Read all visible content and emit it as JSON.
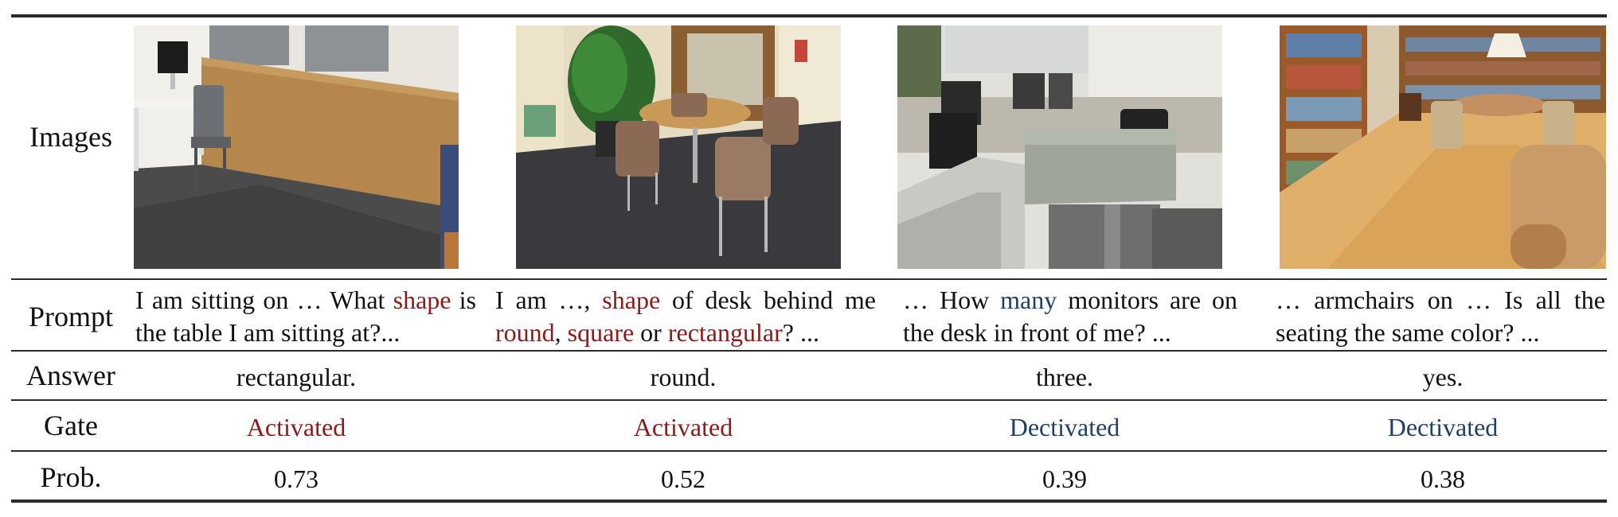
{
  "row_labels": {
    "images": "Images",
    "prompt": "Prompt",
    "answer": "Answer",
    "gate": "Gate",
    "prob": "Prob."
  },
  "examples": [
    {
      "image_name": "office-room-photo",
      "prompt_parts": [
        {
          "text": "I am sitting on … What ",
          "highlight": false
        },
        {
          "text": "shape",
          "highlight": true
        },
        {
          "text": " is the table I am sitting at?...",
          "highlight": false
        }
      ],
      "answer": "rectangular.",
      "gate": "Activated",
      "gate_state": "activated",
      "prob": "0.73"
    },
    {
      "image_name": "lounge-table-photo",
      "prompt_parts": [
        {
          "text": "I am …, ",
          "highlight": false
        },
        {
          "text": "shape",
          "highlight": true
        },
        {
          "text": " of desk behind me ",
          "highlight": false
        },
        {
          "text": "round",
          "highlight": true
        },
        {
          "text": ", ",
          "highlight": false
        },
        {
          "text": "square",
          "highlight": true
        },
        {
          "text": " or ",
          "highlight": false
        },
        {
          "text": "rectangular",
          "highlight": true
        },
        {
          "text": "? ...",
          "highlight": false
        }
      ],
      "answer": "round.",
      "gate": "Activated",
      "gate_state": "activated",
      "prob": "0.52"
    },
    {
      "image_name": "cubicle-office-photo",
      "prompt_parts": [
        {
          "text": "… How ",
          "highlight": false
        },
        {
          "text": "many",
          "highlight": "blue"
        },
        {
          "text": " monitors are on the desk in front of me? ...",
          "highlight": false
        }
      ],
      "answer": "three.",
      "gate": "Dectivated",
      "gate_state": "deactivated",
      "prob": "0.39"
    },
    {
      "image_name": "library-room-photo",
      "prompt_parts": [
        {
          "text": "… armchairs on … Is all the seating the same color? ...",
          "highlight": false
        }
      ],
      "answer": "yes.",
      "gate": "Dectivated",
      "gate_state": "deactivated",
      "prob": "0.38"
    }
  ],
  "colors": {
    "activated": "#8b1a1a",
    "deactivated": "#1f3f66",
    "rule": "#2b2b2b"
  }
}
